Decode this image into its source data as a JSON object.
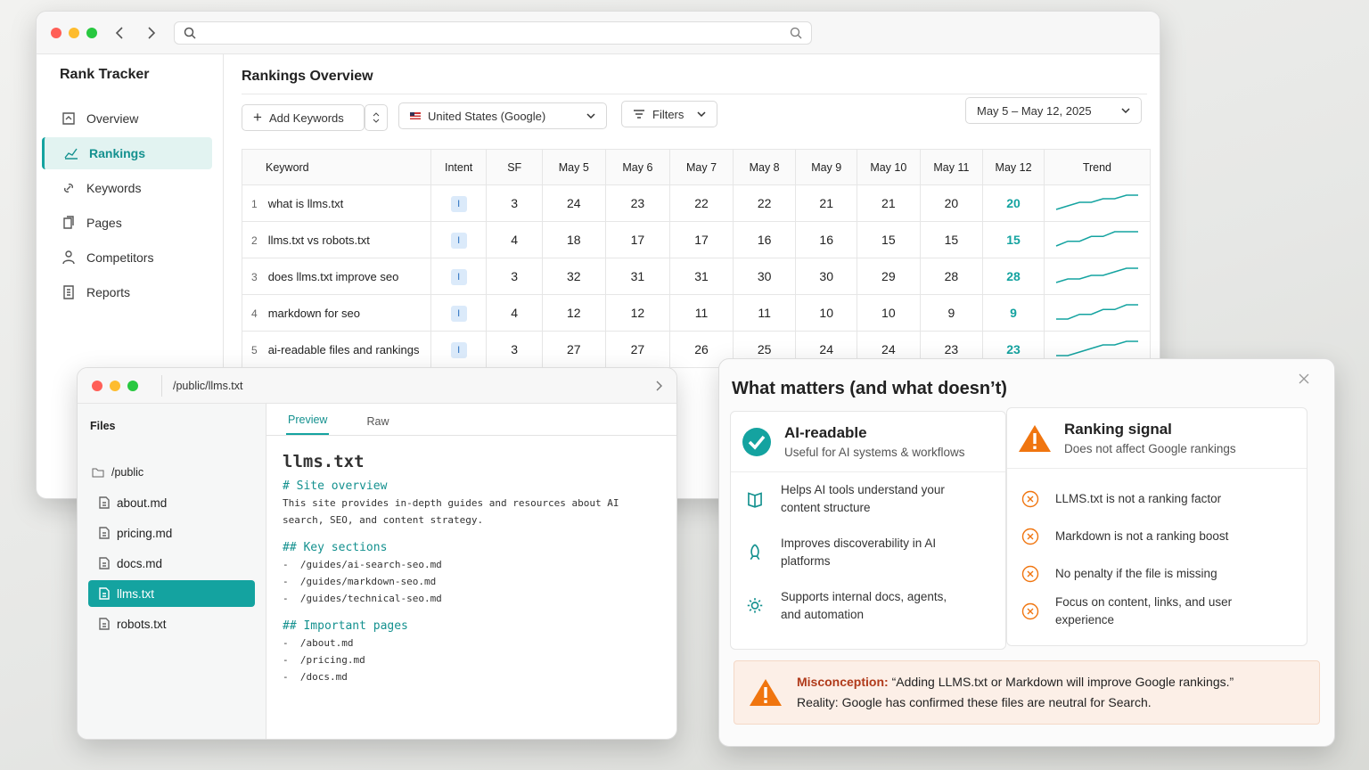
{
  "rank_tracker": {
    "app_title": "Rank Tracker",
    "nav": [
      "Overview",
      "Rankings",
      "Keywords",
      "Pages",
      "Competitors",
      "Reports"
    ],
    "active_nav": 1,
    "page_title": "Rankings Overview",
    "toolbar": {
      "add_keywords": "Add Keywords",
      "location": "United States (Google)",
      "filters": "Filters",
      "date_range": "May 5 – May 12, 2025"
    },
    "table": {
      "headers": [
        "Keyword",
        "Intent",
        "SF",
        "May 5",
        "May 6",
        "May 7",
        "May 8",
        "May 9",
        "May 10",
        "May 11",
        "May 12",
        "Trend"
      ],
      "rows": [
        {
          "rank": 1,
          "keyword": "what is llms.txt",
          "intent": "I",
          "sf": 3,
          "positions": [
            24,
            23,
            22,
            22,
            21,
            21,
            20,
            20
          ]
        },
        {
          "rank": 2,
          "keyword": "llms.txt vs robots.txt",
          "intent": "I",
          "sf": 4,
          "positions": [
            18,
            17,
            17,
            16,
            16,
            15,
            15,
            15
          ]
        },
        {
          "rank": 3,
          "keyword": "does llms.txt improve seo",
          "intent": "I",
          "sf": 3,
          "positions": [
            32,
            31,
            31,
            30,
            30,
            29,
            28,
            28
          ]
        },
        {
          "rank": 4,
          "keyword": "markdown for seo",
          "intent": "I",
          "sf": 4,
          "positions": [
            12,
            12,
            11,
            11,
            10,
            10,
            9,
            9
          ]
        },
        {
          "rank": 5,
          "keyword": "ai-readable files and rankings",
          "intent": "I",
          "sf": 3,
          "positions": [
            27,
            27,
            26,
            25,
            24,
            24,
            23,
            23
          ]
        }
      ]
    }
  },
  "file_viewer": {
    "path": "/public/llms.txt",
    "sidebar_title": "Files",
    "folder": "/public",
    "files": [
      "about.md",
      "pricing.md",
      "docs.md",
      "llms.txt",
      "robots.txt"
    ],
    "active_file": 3,
    "tabs": [
      "Preview",
      "Raw"
    ],
    "active_tab": 0,
    "doc": {
      "title": "llms.txt",
      "overview_heading": "# Site overview",
      "overview": "This site provides in-depth guides and resources about AI search, SEO, and content strategy.",
      "sections_heading": "## Key sections",
      "sections": [
        "-  /guides/ai-search-seo.md",
        "-  /guides/markdown-seo.md",
        "-  /guides/technical-seo.md"
      ],
      "pages_heading": "## Important pages",
      "pages": [
        "-  /about.md",
        "-  /pricing.md",
        "-  /docs.md"
      ]
    }
  },
  "comparison": {
    "title": "What matters (and what doesn’t)",
    "ai": {
      "title": "AI-readable",
      "subtitle": "Useful for AI systems & workflows",
      "items": [
        "Helps AI tools understand your content structure",
        "Improves discoverability in AI platforms",
        "Supports internal docs, agents, and automation"
      ]
    },
    "ranking": {
      "title": "Ranking signal",
      "subtitle": "Does not affect Google rankings",
      "items": [
        "LLMS.txt is not a ranking factor",
        "Markdown is not a ranking boost",
        "No penalty if the file is missing",
        "Focus on content, links, and user experience"
      ]
    },
    "misconception": {
      "label": "Misconception:",
      "quote": "“Adding LLMS.txt or Markdown will improve Google rankings.”",
      "reality": "Reality: Google has confirmed these files are neutral for Search."
    }
  }
}
